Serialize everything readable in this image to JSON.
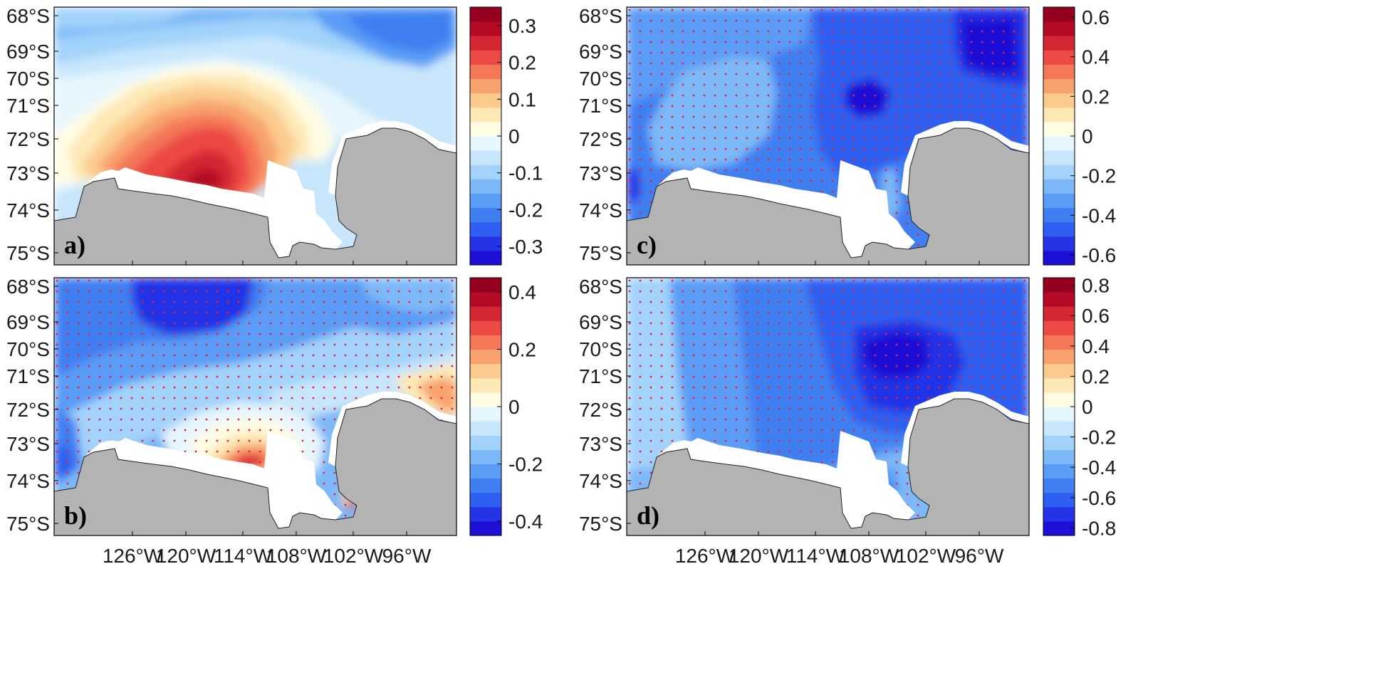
{
  "figure": {
    "lat_labels": [
      "68°S",
      "69°S",
      "70°S",
      "71°S",
      "72°S",
      "73°S",
      "74°S",
      "75°S"
    ],
    "lon_labels": [
      "126°W",
      "120°W",
      "114°W",
      "108°W",
      "102°W",
      "96°W"
    ],
    "colors": {
      "land": "#b3b3b3",
      "ice_shelf": "#ffffff",
      "stipple": "#e8213a",
      "frame": "#000000",
      "colormap": [
        "#1d0fd6",
        "#2433e6",
        "#2f5ff0",
        "#3f7ff2",
        "#5a9cf6",
        "#7db9f8",
        "#a3d3fa",
        "#c7e6fb",
        "#e6f6fd",
        "#fffce4",
        "#fde8b6",
        "#fbcb8e",
        "#f8a36d",
        "#f47758",
        "#ec4a44",
        "#d42733",
        "#b40a26",
        "#960020"
      ]
    },
    "panels": [
      {
        "label": "a)",
        "colorbar_ticks": [
          "0.3",
          "0.2",
          "0.1",
          "0",
          "-0.1",
          "-0.2",
          "-0.3"
        ],
        "colorbar_range": [
          -0.35,
          0.35
        ],
        "stippled": false
      },
      {
        "label": "b)",
        "colorbar_ticks": [
          "0.4",
          "0.2",
          "0",
          "-0.2",
          "-0.4"
        ],
        "colorbar_range": [
          -0.45,
          0.45
        ],
        "stippled": true
      },
      {
        "label": "c)",
        "colorbar_ticks": [
          "0.6",
          "0.4",
          "0.2",
          "0",
          "-0.2",
          "-0.4",
          "-0.6"
        ],
        "colorbar_range": [
          -0.65,
          0.65
        ],
        "stippled": true
      },
      {
        "label": "d)",
        "colorbar_ticks": [
          "0.8",
          "0.6",
          "0.4",
          "0.2",
          "0",
          "-0.2",
          "-0.4",
          "-0.6",
          "-0.8"
        ],
        "colorbar_range": [
          -0.85,
          0.85
        ],
        "stippled": true
      }
    ]
  }
}
